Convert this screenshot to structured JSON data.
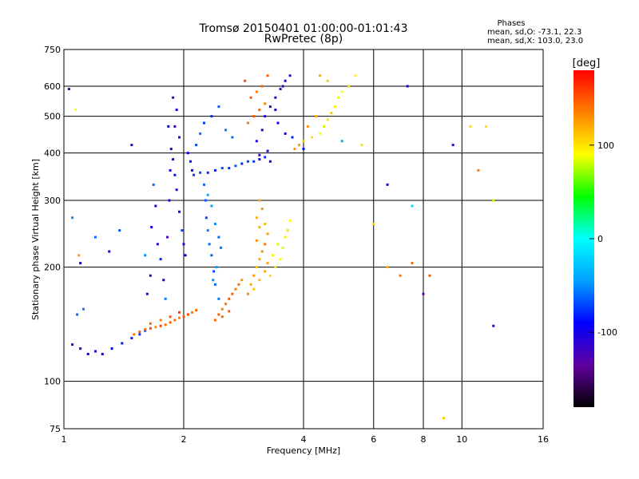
{
  "chart_data": {
    "type": "scatter",
    "title": "Tromsø 20150401 01:00:00-01:01:43",
    "subtitle": "RwPretec (8p)",
    "xlabel": "Frequency [MHz]",
    "ylabel": "Stationary phase Virtual Height [km]",
    "x_scale": "log",
    "y_scale": "log",
    "xlim": [
      1,
      16
    ],
    "ylim": [
      75,
      750
    ],
    "x_ticks": [
      1,
      2,
      4,
      6,
      8,
      10,
      16
    ],
    "x_ticklabels": [
      "1",
      "2",
      "4",
      "6",
      "8",
      "10",
      "16"
    ],
    "x_gridlines": [
      1,
      2,
      4,
      6,
      8,
      10,
      16
    ],
    "y_ticks": [
      75,
      100,
      200,
      300,
      400,
      500,
      600,
      750
    ],
    "y_ticklabels": [
      "75",
      "100",
      "200",
      "300",
      "400",
      "500",
      "600",
      "750"
    ],
    "y_gridlines": [
      100,
      200,
      300,
      400,
      500,
      600
    ],
    "grid": true,
    "stats": {
      "heading": "Phases",
      "line_o": "mean, sd,O: -73.1, 22.3",
      "line_x": "mean, sd,X: 103.0, 23.0"
    },
    "colorbar": {
      "label": "[deg]",
      "range": [
        -180,
        180
      ],
      "ticks": [
        100,
        0,
        -100
      ],
      "ticklabels": [
        "100",
        "0",
        "-100"
      ],
      "colormap": [
        "#000000",
        "#6000a0",
        "#0000ff",
        "#00a0ff",
        "#00ffff",
        "#00ff00",
        "#ffff00",
        "#ff8000",
        "#ff0000"
      ]
    },
    "series": [
      {
        "points": [
          [
            1.05,
            125
          ],
          [
            1.1,
            122
          ],
          [
            1.15,
            118
          ],
          [
            1.2,
            120
          ],
          [
            1.25,
            118
          ],
          [
            1.32,
            122
          ],
          [
            1.4,
            126
          ],
          [
            1.48,
            130
          ],
          [
            1.55,
            133
          ],
          [
            1.6,
            136
          ],
          [
            1.08,
            150
          ],
          [
            1.12,
            155
          ],
          [
            1.05,
            270
          ],
          [
            1.1,
            205
          ],
          [
            1.2,
            240
          ],
          [
            1.3,
            220
          ],
          [
            1.38,
            250
          ],
          [
            1.48,
            420
          ],
          [
            1.6,
            215
          ],
          [
            1.62,
            170
          ],
          [
            1.65,
            190
          ],
          [
            1.66,
            255
          ],
          [
            1.68,
            330
          ],
          [
            1.7,
            290
          ],
          [
            1.72,
            230
          ],
          [
            1.75,
            210
          ],
          [
            1.78,
            185
          ],
          [
            1.8,
            165
          ],
          [
            1.82,
            240
          ],
          [
            1.84,
            300
          ],
          [
            1.85,
            360
          ],
          [
            1.86,
            410
          ],
          [
            1.88,
            385
          ],
          [
            1.9,
            350
          ],
          [
            1.92,
            320
          ],
          [
            1.95,
            280
          ],
          [
            1.98,
            250
          ],
          [
            2.0,
            230
          ],
          [
            2.02,
            215
          ],
          [
            1.9,
            470
          ],
          [
            1.92,
            520
          ],
          [
            1.95,
            440
          ],
          [
            1.88,
            560
          ],
          [
            1.83,
            470
          ],
          [
            2.05,
            400
          ],
          [
            2.08,
            380
          ],
          [
            2.1,
            360
          ],
          [
            2.12,
            350
          ],
          [
            2.2,
            355
          ],
          [
            2.3,
            355
          ],
          [
            2.4,
            360
          ],
          [
            2.5,
            365
          ],
          [
            2.6,
            365
          ],
          [
            2.7,
            370
          ],
          [
            2.8,
            375
          ],
          [
            2.9,
            380
          ],
          [
            3.0,
            380
          ],
          [
            3.1,
            385
          ],
          [
            3.2,
            390
          ],
          [
            3.3,
            380
          ],
          [
            2.15,
            420
          ],
          [
            2.2,
            450
          ],
          [
            2.25,
            480
          ],
          [
            2.35,
            500
          ],
          [
            2.45,
            530
          ],
          [
            2.55,
            460
          ],
          [
            2.65,
            440
          ],
          [
            2.25,
            330
          ],
          [
            2.27,
            300
          ],
          [
            2.28,
            270
          ],
          [
            2.3,
            250
          ],
          [
            2.32,
            230
          ],
          [
            2.35,
            215
          ],
          [
            2.38,
            195
          ],
          [
            2.4,
            180
          ],
          [
            2.45,
            165
          ],
          [
            2.3,
            310
          ],
          [
            2.35,
            290
          ],
          [
            2.4,
            260
          ],
          [
            2.45,
            240
          ],
          [
            2.48,
            225
          ],
          [
            2.42,
            200
          ],
          [
            2.37,
            185
          ],
          [
            3.05,
            430
          ],
          [
            3.15,
            460
          ],
          [
            3.2,
            500
          ],
          [
            3.3,
            530
          ],
          [
            3.4,
            560
          ],
          [
            3.5,
            590
          ],
          [
            3.6,
            620
          ],
          [
            3.7,
            640
          ],
          [
            3.55,
            600
          ],
          [
            3.4,
            520
          ],
          [
            3.45,
            480
          ],
          [
            3.6,
            450
          ],
          [
            3.75,
            440
          ],
          [
            3.9,
            420
          ],
          [
            4.0,
            410
          ],
          [
            3.25,
            405
          ],
          [
            3.1,
            395
          ],
          [
            1.03,
            590
          ],
          [
            5.0,
            430
          ],
          [
            6.5,
            330
          ],
          [
            7.5,
            290
          ],
          [
            8.0,
            170
          ],
          [
            9.5,
            420
          ],
          [
            7.3,
            600
          ],
          [
            12.0,
            140
          ]
        ],
        "phases": [
          -110,
          -115,
          -100,
          -105,
          -95,
          -90,
          -85,
          -80,
          -75,
          -70,
          -60,
          -55,
          -50,
          -95,
          -60,
          -100,
          -65,
          -110,
          -50,
          -85,
          -105,
          -100,
          -60,
          -95,
          -110,
          -80,
          -100,
          -55,
          -120,
          -105,
          -95,
          -110,
          -100,
          -85,
          -115,
          -90,
          -70,
          -105,
          -95,
          -110,
          -100,
          -115,
          -120,
          -90,
          -95,
          -85,
          -100,
          -75,
          -70,
          -80,
          -85,
          -70,
          -75,
          -65,
          -80,
          -70,
          -75,
          -85,
          -80,
          -100,
          -70,
          -60,
          -75,
          -80,
          -65,
          -55,
          -60,
          -60,
          -65,
          -70,
          -55,
          -60,
          -65,
          -70,
          -60,
          -55,
          -40,
          -45,
          -50,
          -60,
          -55,
          -45,
          -50,
          -100,
          -110,
          -115,
          -120,
          -110,
          -125,
          -105,
          -120,
          -115,
          -100,
          -95,
          -105,
          -80,
          -100,
          -95,
          -110,
          -120,
          -120,
          -40,
          -110,
          -20,
          -130,
          -115,
          -105,
          -120
        ]
      },
      {
        "points": [
          [
            1.5,
            133
          ],
          [
            1.55,
            135
          ],
          [
            1.6,
            137
          ],
          [
            1.65,
            138
          ],
          [
            1.7,
            139
          ],
          [
            1.75,
            140
          ],
          [
            1.8,
            141
          ],
          [
            1.85,
            143
          ],
          [
            1.9,
            145
          ],
          [
            1.95,
            147
          ],
          [
            2.0,
            148
          ],
          [
            2.05,
            150
          ],
          [
            2.1,
            152
          ],
          [
            2.15,
            154
          ],
          [
            1.85,
            148
          ],
          [
            1.95,
            152
          ],
          [
            1.75,
            145
          ],
          [
            1.65,
            142
          ],
          [
            2.4,
            145
          ],
          [
            2.45,
            150
          ],
          [
            2.5,
            155
          ],
          [
            2.55,
            160
          ],
          [
            2.6,
            165
          ],
          [
            2.65,
            170
          ],
          [
            2.7,
            175
          ],
          [
            2.75,
            180
          ],
          [
            2.8,
            185
          ],
          [
            2.5,
            148
          ],
          [
            2.6,
            153
          ],
          [
            2.9,
            170
          ],
          [
            2.95,
            180
          ],
          [
            3.0,
            190
          ],
          [
            3.05,
            200
          ],
          [
            3.1,
            210
          ],
          [
            3.15,
            220
          ],
          [
            3.2,
            230
          ],
          [
            3.25,
            245
          ],
          [
            3.1,
            255
          ],
          [
            3.05,
            270
          ],
          [
            3.15,
            285
          ],
          [
            3.0,
            175
          ],
          [
            3.1,
            185
          ],
          [
            3.2,
            195
          ],
          [
            3.25,
            205
          ],
          [
            3.05,
            235
          ],
          [
            3.2,
            260
          ],
          [
            3.1,
            300
          ],
          [
            3.3,
            190
          ],
          [
            3.4,
            200
          ],
          [
            3.5,
            210
          ],
          [
            3.55,
            225
          ],
          [
            3.6,
            240
          ],
          [
            3.65,
            250
          ],
          [
            3.7,
            265
          ],
          [
            3.45,
            230
          ],
          [
            3.35,
            215
          ],
          [
            2.9,
            480
          ],
          [
            3.0,
            500
          ],
          [
            3.1,
            520
          ],
          [
            3.2,
            540
          ],
          [
            2.95,
            560
          ],
          [
            3.05,
            580
          ],
          [
            3.15,
            600
          ],
          [
            2.85,
            620
          ],
          [
            3.25,
            640
          ],
          [
            3.8,
            410
          ],
          [
            3.9,
            420
          ],
          [
            4.0,
            430
          ],
          [
            4.2,
            440
          ],
          [
            4.4,
            450
          ],
          [
            4.5,
            470
          ],
          [
            4.6,
            490
          ],
          [
            4.7,
            510
          ],
          [
            4.8,
            530
          ],
          [
            4.3,
            500
          ],
          [
            4.1,
            470
          ],
          [
            4.9,
            560
          ],
          [
            5.0,
            580
          ],
          [
            5.2,
            600
          ],
          [
            4.6,
            620
          ],
          [
            4.4,
            640
          ],
          [
            5.4,
            640
          ],
          [
            5.6,
            420
          ],
          [
            6.0,
            260
          ],
          [
            6.5,
            200
          ],
          [
            7.0,
            190
          ],
          [
            7.5,
            205
          ],
          [
            8.3,
            190
          ],
          [
            10.5,
            470
          ],
          [
            11.0,
            360
          ],
          [
            11.5,
            470
          ],
          [
            12.0,
            300
          ],
          [
            1.09,
            215
          ],
          [
            1.07,
            520
          ],
          [
            9.0,
            80
          ]
        ],
        "phases": [
          140,
          150,
          145,
          155,
          130,
          160,
          140,
          150,
          145,
          135,
          150,
          155,
          140,
          145,
          150,
          160,
          135,
          145,
          145,
          150,
          135,
          140,
          150,
          145,
          135,
          140,
          130,
          145,
          150,
          130,
          120,
          125,
          110,
          120,
          130,
          140,
          125,
          115,
          120,
          130,
          110,
          115,
          120,
          125,
          130,
          115,
          120,
          100,
          95,
          90,
          85,
          95,
          100,
          90,
          85,
          95,
          140,
          150,
          145,
          135,
          150,
          140,
          145,
          155,
          150,
          130,
          120,
          110,
          100,
          90,
          80,
          100,
          110,
          95,
          120,
          130,
          85,
          90,
          100,
          110,
          120,
          95,
          100,
          105,
          120,
          140,
          145,
          150,
          100,
          135,
          100,
          80,
          125,
          90,
          110
        ]
      }
    ]
  }
}
